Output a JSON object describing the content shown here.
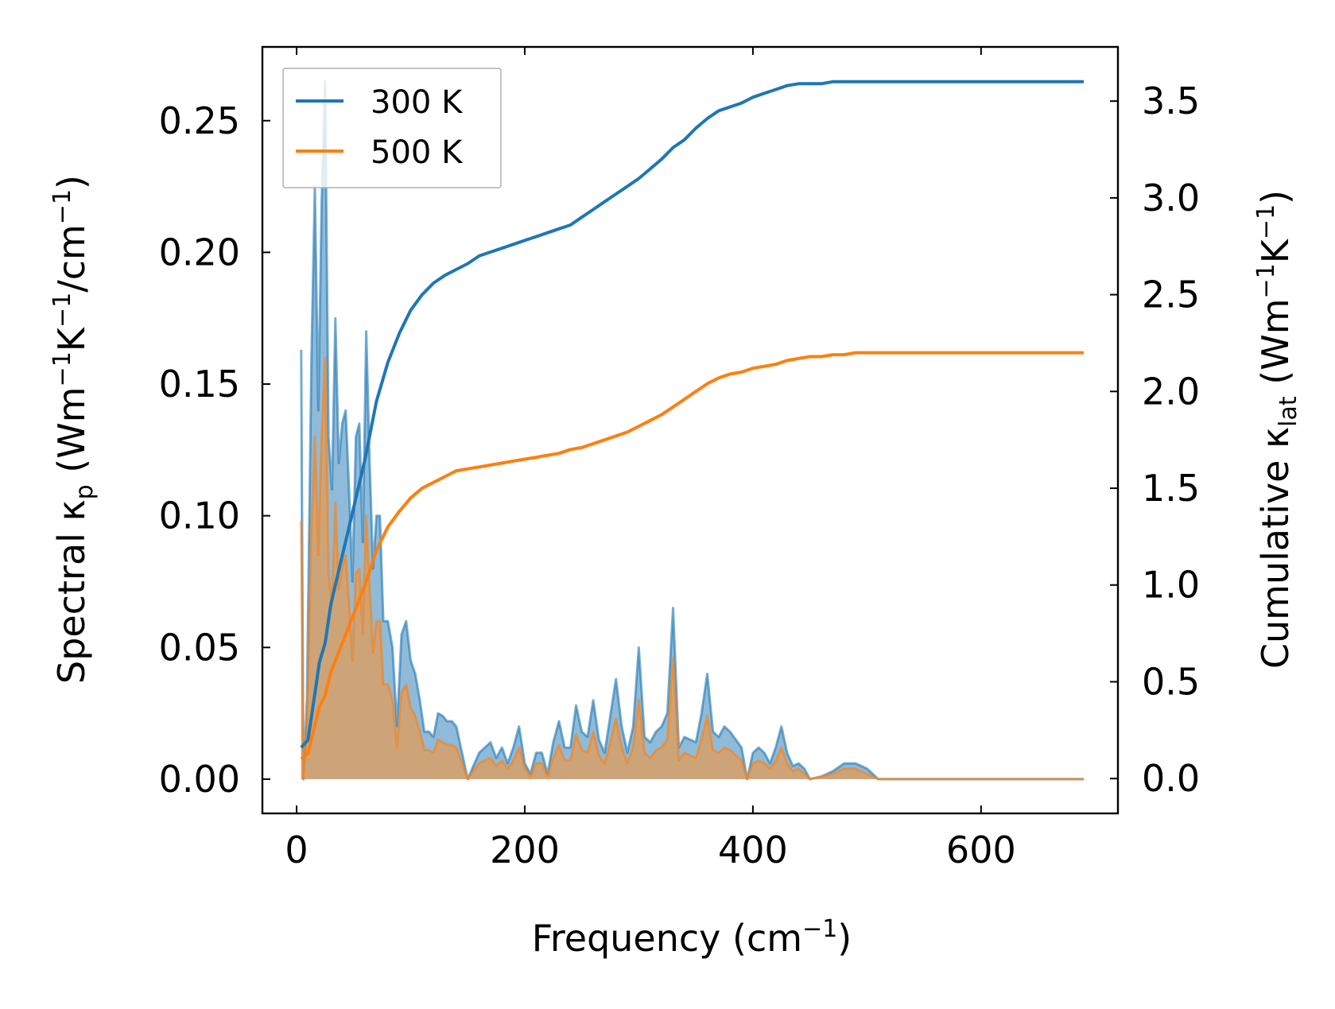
{
  "chart_data": {
    "type": "line+area",
    "xlabel": "Frequency (cm",
    "xlabel_sup": "−1",
    "xlabel_close": ")",
    "ylabel_left": {
      "p1": "Spectral κ",
      "sub1": "p",
      "p2": " (Wm",
      "sup1": "−1",
      "p3": "K",
      "sup2": "−1",
      "p4": "/cm",
      "sup3": "−1",
      "p5": ")"
    },
    "ylabel_right": {
      "p1": "Cumulative κ",
      "sub1": "lat",
      "p2": " (Wm",
      "sup1": "−1",
      "p3": "K",
      "sup2": "−1",
      "p4": ")"
    },
    "xlim": [
      -30,
      720
    ],
    "ylim_left": [
      -0.013,
      0.278
    ],
    "ylim_right": [
      -0.18,
      3.78
    ],
    "x_ticks": [
      0,
      200,
      400,
      600
    ],
    "x_tick_labels": [
      "0",
      "200",
      "400",
      "600"
    ],
    "y_left_ticks": [
      0,
      0.05,
      0.1,
      0.15,
      0.2,
      0.25
    ],
    "y_left_tick_labels": [
      "0.00",
      "0.05",
      "0.10",
      "0.15",
      "0.20",
      "0.25"
    ],
    "y_right_ticks": [
      0,
      0.5,
      1.0,
      1.5,
      2.0,
      2.5,
      3.0,
      3.5
    ],
    "y_right_tick_labels": [
      "0.0",
      "0.5",
      "1.0",
      "1.5",
      "2.0",
      "2.5",
      "3.0",
      "3.5"
    ],
    "legend": {
      "position": "top-left",
      "entries": [
        "300 K",
        "500 K"
      ]
    },
    "colors": {
      "300K": "#1f77b4",
      "500K": "#ff7f0e",
      "fill300": "#1f77b4",
      "fill500": "#d8a066"
    },
    "series": [
      {
        "name": "300 K",
        "spectral": {
          "x": [
            4,
            6,
            9,
            13,
            16,
            19,
            22,
            25,
            28,
            31,
            34,
            37,
            40,
            43,
            46,
            49,
            52,
            55,
            58,
            61,
            64,
            67,
            70,
            73,
            76,
            80,
            84,
            88,
            92,
            96,
            100,
            104,
            108,
            112,
            116,
            120,
            124,
            128,
            132,
            136,
            140,
            150,
            160,
            165,
            170,
            175,
            180,
            185,
            190,
            195,
            200,
            205,
            210,
            215,
            220,
            225,
            230,
            235,
            240,
            245,
            250,
            255,
            260,
            265,
            270,
            275,
            280,
            285,
            290,
            295,
            300,
            305,
            310,
            315,
            320,
            325,
            330,
            335,
            340,
            345,
            350,
            355,
            360,
            365,
            370,
            375,
            380,
            385,
            390,
            395,
            400,
            405,
            410,
            415,
            420,
            425,
            430,
            435,
            440,
            445,
            450,
            460,
            470,
            480,
            490,
            500,
            510,
            520,
            690
          ],
          "y": [
            0.163,
            0.0,
            0.03,
            0.16,
            0.225,
            0.14,
            0.22,
            0.265,
            0.13,
            0.11,
            0.175,
            0.12,
            0.135,
            0.14,
            0.11,
            0.075,
            0.13,
            0.135,
            0.09,
            0.17,
            0.12,
            0.08,
            0.1,
            0.1,
            0.06,
            0.06,
            0.05,
            0.02,
            0.055,
            0.06,
            0.045,
            0.04,
            0.03,
            0.018,
            0.018,
            0.016,
            0.025,
            0.024,
            0.022,
            0.022,
            0.02,
            0.0,
            0.01,
            0.012,
            0.014,
            0.008,
            0.012,
            0.006,
            0.012,
            0.02,
            0.006,
            0.002,
            0.01,
            0.01,
            0.002,
            0.014,
            0.022,
            0.012,
            0.012,
            0.028,
            0.018,
            0.016,
            0.03,
            0.015,
            0.01,
            0.024,
            0.038,
            0.02,
            0.01,
            0.02,
            0.05,
            0.016,
            0.014,
            0.018,
            0.02,
            0.025,
            0.065,
            0.012,
            0.016,
            0.015,
            0.014,
            0.025,
            0.04,
            0.018,
            0.016,
            0.02,
            0.018,
            0.015,
            0.012,
            0.0,
            0.01,
            0.012,
            0.01,
            0.006,
            0.012,
            0.02,
            0.01,
            0.005,
            0.006,
            0.004,
            0.0,
            0.001,
            0.003,
            0.006,
            0.006,
            0.004,
            0.0,
            0.0,
            0.0
          ]
        },
        "cumulative": {
          "x": [
            4,
            10,
            15,
            20,
            25,
            30,
            40,
            50,
            60,
            70,
            80,
            90,
            100,
            110,
            120,
            130,
            140,
            150,
            160,
            170,
            180,
            190,
            200,
            210,
            220,
            230,
            240,
            250,
            260,
            270,
            280,
            290,
            300,
            310,
            320,
            330,
            340,
            350,
            360,
            370,
            380,
            390,
            400,
            410,
            420,
            430,
            440,
            450,
            460,
            470,
            480,
            490,
            500,
            510,
            690
          ],
          "y": [
            0.16,
            0.2,
            0.4,
            0.6,
            0.7,
            0.9,
            1.15,
            1.4,
            1.65,
            1.95,
            2.15,
            2.3,
            2.42,
            2.5,
            2.56,
            2.6,
            2.63,
            2.66,
            2.7,
            2.72,
            2.74,
            2.76,
            2.78,
            2.8,
            2.82,
            2.84,
            2.86,
            2.9,
            2.94,
            2.98,
            3.02,
            3.06,
            3.1,
            3.15,
            3.2,
            3.26,
            3.3,
            3.36,
            3.41,
            3.45,
            3.47,
            3.49,
            3.52,
            3.54,
            3.56,
            3.58,
            3.59,
            3.59,
            3.59,
            3.6,
            3.6,
            3.6,
            3.6,
            3.6,
            3.6
          ]
        }
      },
      {
        "name": "500 K",
        "spectral": {
          "x": [
            4,
            6,
            9,
            13,
            16,
            19,
            22,
            25,
            28,
            31,
            34,
            37,
            40,
            43,
            46,
            49,
            52,
            55,
            58,
            61,
            64,
            67,
            70,
            73,
            76,
            80,
            84,
            88,
            92,
            96,
            100,
            104,
            108,
            112,
            116,
            120,
            124,
            128,
            132,
            136,
            140,
            150,
            160,
            165,
            170,
            175,
            180,
            185,
            190,
            195,
            200,
            205,
            210,
            215,
            220,
            225,
            230,
            235,
            240,
            245,
            250,
            255,
            260,
            265,
            270,
            275,
            280,
            285,
            290,
            295,
            300,
            305,
            310,
            315,
            320,
            325,
            330,
            335,
            340,
            345,
            350,
            355,
            360,
            365,
            370,
            375,
            380,
            385,
            390,
            395,
            400,
            405,
            410,
            415,
            420,
            425,
            430,
            435,
            440,
            445,
            450,
            460,
            470,
            480,
            490,
            500,
            510,
            520,
            690
          ],
          "y": [
            0.098,
            0.0,
            0.018,
            0.095,
            0.13,
            0.085,
            0.13,
            0.16,
            0.078,
            0.066,
            0.105,
            0.072,
            0.08,
            0.085,
            0.066,
            0.045,
            0.078,
            0.08,
            0.055,
            0.1,
            0.072,
            0.048,
            0.06,
            0.06,
            0.036,
            0.036,
            0.03,
            0.012,
            0.033,
            0.036,
            0.027,
            0.024,
            0.018,
            0.011,
            0.011,
            0.01,
            0.015,
            0.014,
            0.013,
            0.013,
            0.012,
            0.0,
            0.006,
            0.007,
            0.008,
            0.005,
            0.007,
            0.004,
            0.007,
            0.012,
            0.004,
            0.001,
            0.006,
            0.006,
            0.001,
            0.008,
            0.013,
            0.007,
            0.007,
            0.017,
            0.011,
            0.01,
            0.018,
            0.009,
            0.006,
            0.014,
            0.023,
            0.012,
            0.006,
            0.012,
            0.03,
            0.01,
            0.008,
            0.011,
            0.012,
            0.015,
            0.046,
            0.007,
            0.01,
            0.009,
            0.008,
            0.015,
            0.024,
            0.011,
            0.01,
            0.012,
            0.011,
            0.009,
            0.007,
            0.0,
            0.006,
            0.007,
            0.006,
            0.004,
            0.007,
            0.012,
            0.006,
            0.003,
            0.004,
            0.002,
            0.0,
            0.001,
            0.002,
            0.004,
            0.004,
            0.002,
            0.0,
            0.0,
            0.0
          ]
        },
        "cumulative": {
          "x": [
            4,
            10,
            15,
            20,
            25,
            30,
            40,
            50,
            60,
            70,
            80,
            90,
            100,
            110,
            120,
            130,
            140,
            150,
            160,
            170,
            180,
            190,
            200,
            210,
            220,
            230,
            240,
            250,
            260,
            270,
            280,
            290,
            300,
            310,
            320,
            330,
            340,
            350,
            360,
            370,
            380,
            390,
            400,
            410,
            420,
            430,
            440,
            450,
            460,
            470,
            480,
            490,
            500,
            510,
            690
          ],
          "y": [
            0.1,
            0.13,
            0.25,
            0.37,
            0.43,
            0.55,
            0.7,
            0.85,
            1.0,
            1.18,
            1.3,
            1.38,
            1.45,
            1.5,
            1.53,
            1.56,
            1.59,
            1.6,
            1.61,
            1.62,
            1.63,
            1.64,
            1.65,
            1.66,
            1.67,
            1.68,
            1.7,
            1.71,
            1.73,
            1.75,
            1.77,
            1.79,
            1.82,
            1.85,
            1.88,
            1.92,
            1.96,
            2.0,
            2.04,
            2.07,
            2.09,
            2.1,
            2.12,
            2.13,
            2.14,
            2.16,
            2.17,
            2.18,
            2.18,
            2.19,
            2.19,
            2.2,
            2.2,
            2.2,
            2.2
          ]
        }
      }
    ]
  }
}
